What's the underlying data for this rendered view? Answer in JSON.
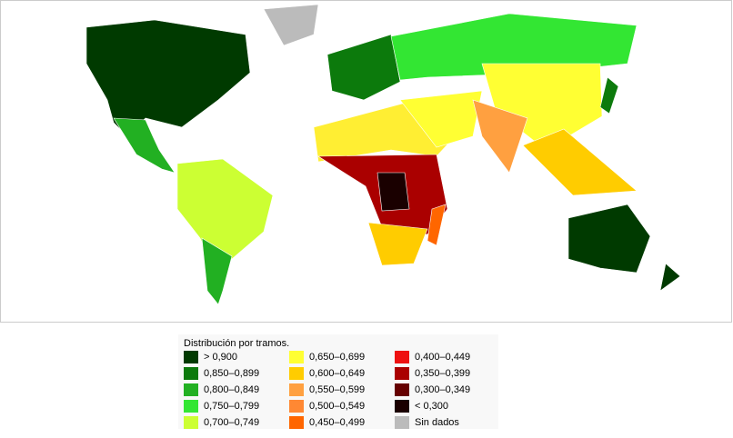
{
  "legend": {
    "title": "Distribución por tramos.",
    "items": [
      {
        "label": "> 0,900",
        "color": "#003a00"
      },
      {
        "label": "0,850–0,899",
        "color": "#0c7a0c"
      },
      {
        "label": "0,800–0,849",
        "color": "#22b022"
      },
      {
        "label": "0,750–0,799",
        "color": "#33e633"
      },
      {
        "label": "0,700–0,749",
        "color": "#ccff33"
      },
      {
        "label": "0,650–0,699",
        "color": "#ffff33"
      },
      {
        "label": "0,600–0,649",
        "color": "#ffcc00"
      },
      {
        "label": "0,550–0,599",
        "color": "#ffa040"
      },
      {
        "label": "0,500–0,549",
        "color": "#ff8833"
      },
      {
        "label": "0,450–0,499",
        "color": "#ff6600"
      },
      {
        "label": "0,400–0,449",
        "color": "#ee1111"
      },
      {
        "label": "0,350–0,399",
        "color": "#aa0000"
      },
      {
        "label": "0,300–0,349",
        "color": "#660000"
      },
      {
        "label": "< 0,300",
        "color": "#1a0000"
      },
      {
        "label": "Sin dados",
        "color": "#bbbbbb"
      }
    ]
  }
}
